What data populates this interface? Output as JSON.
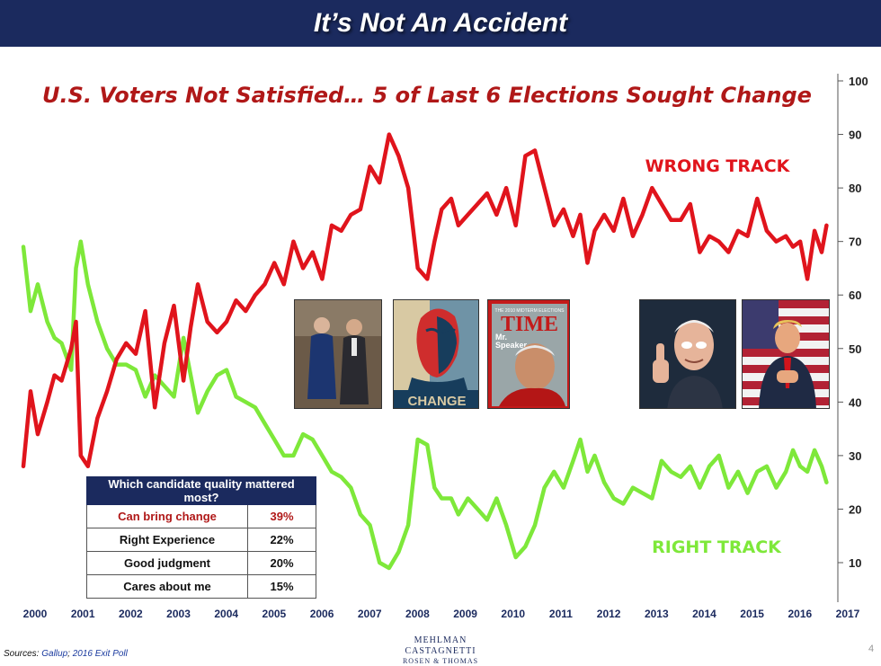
{
  "header": {
    "title": "It’s Not An Accident"
  },
  "colors": {
    "header_bg": "#1b2a5e",
    "wrong_track": "#e0141c",
    "right_track": "#7ee83a",
    "subtitle": "#b01818"
  },
  "photos": [
    {
      "name": "photo-politicians-walking",
      "caption": ""
    },
    {
      "name": "photo-change-poster",
      "caption": "CHANGE"
    },
    {
      "name": "photo-time-cover",
      "masthead": "TIME",
      "banner": "THE 2010 MIDTERM ELECTIONS",
      "headline_1": "Mr.",
      "headline_2": "Speaker"
    },
    {
      "name": "photo-thumbs-up",
      "caption": ""
    },
    {
      "name": "photo-flag-speaker",
      "caption": ""
    }
  ],
  "quality_table": {
    "header": "Which candidate quality mattered most?",
    "rows": [
      {
        "quality": "Can bring change",
        "pct": "39%"
      },
      {
        "quality": "Right Experience",
        "pct": "22%"
      },
      {
        "quality": "Good judgment",
        "pct": "20%"
      },
      {
        "quality": "Cares about me",
        "pct": "15%"
      }
    ]
  },
  "sources": {
    "label": "Sources:",
    "gallup": "Gallup",
    "separator": ";",
    "exit_poll": "2016 Exit Poll"
  },
  "logo": {
    "line1": "MEHLMAN CASTAGNETTI",
    "line2": "ROSEN & THOMAS"
  },
  "page_number": "4",
  "chart_data": {
    "type": "line",
    "title": "U.S. Voters Not Satisfied… 5 of Last 6 Elections Sought Change",
    "xlabel": "",
    "ylabel": "",
    "ylim": [
      4,
      100
    ],
    "xlim": [
      2000,
      2017
    ],
    "y_ticks": [
      10,
      20,
      30,
      40,
      50,
      60,
      70,
      80,
      90,
      100
    ],
    "x_ticks": [
      "2000",
      "2001",
      "2002",
      "2003",
      "2004",
      "2005",
      "2006",
      "2007",
      "2008",
      "2009",
      "2010",
      "2011",
      "2012",
      "2013",
      "2014",
      "2015",
      "2016",
      "2017"
    ],
    "grid": false,
    "y_axis_position": "right",
    "series": [
      {
        "name": "WRONG TRACK",
        "color": "#e0141c",
        "x": [
          2000.0,
          2000.15,
          2000.3,
          2000.5,
          2000.65,
          2000.8,
          2001.0,
          2001.1,
          2001.2,
          2001.35,
          2001.55,
          2001.75,
          2001.95,
          2002.15,
          2002.35,
          2002.55,
          2002.75,
          2002.95,
          2003.15,
          2003.35,
          2003.5,
          2003.65,
          2003.85,
          2004.05,
          2004.25,
          2004.45,
          2004.65,
          2004.85,
          2005.05,
          2005.25,
          2005.45,
          2005.65,
          2005.85,
          2006.05,
          2006.25,
          2006.45,
          2006.65,
          2006.85,
          2007.05,
          2007.25,
          2007.45,
          2007.65,
          2007.85,
          2008.05,
          2008.25,
          2008.45,
          2008.6,
          2008.75,
          2008.95,
          2009.1,
          2009.3,
          2009.5,
          2009.7,
          2009.9,
          2010.1,
          2010.3,
          2010.5,
          2010.7,
          2010.9,
          2011.1,
          2011.3,
          2011.5,
          2011.65,
          2011.8,
          2011.95,
          2012.15,
          2012.35,
          2012.55,
          2012.75,
          2012.95,
          2013.15,
          2013.35,
          2013.55,
          2013.75,
          2013.95,
          2014.15,
          2014.35,
          2014.55,
          2014.75,
          2014.95,
          2015.15,
          2015.35,
          2015.55,
          2015.75,
          2015.95,
          2016.1,
          2016.25,
          2016.4,
          2016.55,
          2016.7,
          2016.8
        ],
        "y": [
          28,
          42,
          34,
          40,
          45,
          44,
          50,
          55,
          30,
          28,
          37,
          42,
          48,
          51,
          49,
          57,
          39,
          51,
          58,
          44,
          54,
          62,
          55,
          53,
          55,
          59,
          57,
          60,
          62,
          66,
          62,
          70,
          65,
          68,
          63,
          73,
          72,
          75,
          76,
          84,
          81,
          90,
          86,
          80,
          65,
          63,
          70,
          76,
          78,
          73,
          75,
          77,
          79,
          75,
          80,
          73,
          86,
          87,
          80,
          73,
          76,
          71,
          75,
          66,
          72,
          75,
          72,
          78,
          71,
          75,
          80,
          77,
          74,
          74,
          77,
          68,
          71,
          70,
          68,
          72,
          71,
          78,
          72,
          70,
          71,
          69,
          70,
          63,
          72,
          68,
          73
        ]
      },
      {
        "name": "RIGHT TRACK",
        "color": "#7ee83a",
        "x": [
          2000.0,
          2000.15,
          2000.3,
          2000.5,
          2000.65,
          2000.8,
          2001.0,
          2001.1,
          2001.2,
          2001.35,
          2001.55,
          2001.75,
          2001.95,
          2002.15,
          2002.35,
          2002.55,
          2002.75,
          2002.95,
          2003.15,
          2003.35,
          2003.5,
          2003.65,
          2003.85,
          2004.05,
          2004.25,
          2004.45,
          2004.65,
          2004.85,
          2005.05,
          2005.25,
          2005.45,
          2005.65,
          2005.85,
          2006.05,
          2006.25,
          2006.45,
          2006.65,
          2006.85,
          2007.05,
          2007.25,
          2007.45,
          2007.65,
          2007.85,
          2008.05,
          2008.25,
          2008.45,
          2008.6,
          2008.75,
          2008.95,
          2009.1,
          2009.3,
          2009.5,
          2009.7,
          2009.9,
          2010.1,
          2010.3,
          2010.5,
          2010.7,
          2010.9,
          2011.1,
          2011.3,
          2011.5,
          2011.65,
          2011.8,
          2011.95,
          2012.15,
          2012.35,
          2012.55,
          2012.75,
          2012.95,
          2013.15,
          2013.35,
          2013.55,
          2013.75,
          2013.95,
          2014.15,
          2014.35,
          2014.55,
          2014.75,
          2014.95,
          2015.15,
          2015.35,
          2015.55,
          2015.75,
          2015.95,
          2016.1,
          2016.25,
          2016.4,
          2016.55,
          2016.7,
          2016.8
        ],
        "y": [
          69,
          57,
          62,
          55,
          52,
          51,
          46,
          65,
          70,
          62,
          55,
          50,
          47,
          47,
          46,
          41,
          45,
          43,
          41,
          52,
          45,
          38,
          42,
          45,
          46,
          41,
          40,
          39,
          36,
          33,
          30,
          30,
          34,
          33,
          30,
          27,
          26,
          24,
          19,
          17,
          10,
          9,
          12,
          17,
          33,
          32,
          24,
          22,
          22,
          19,
          22,
          20,
          18,
          22,
          17,
          11,
          13,
          17,
          24,
          27,
          24,
          29,
          33,
          27,
          30,
          25,
          22,
          21,
          24,
          23,
          22,
          29,
          27,
          26,
          28,
          24,
          28,
          30,
          24,
          27,
          23,
          27,
          28,
          24,
          27,
          31,
          28,
          27,
          31,
          28,
          25
        ]
      }
    ],
    "annotations": [
      "WRONG TRACK",
      "RIGHT TRACK"
    ]
  }
}
